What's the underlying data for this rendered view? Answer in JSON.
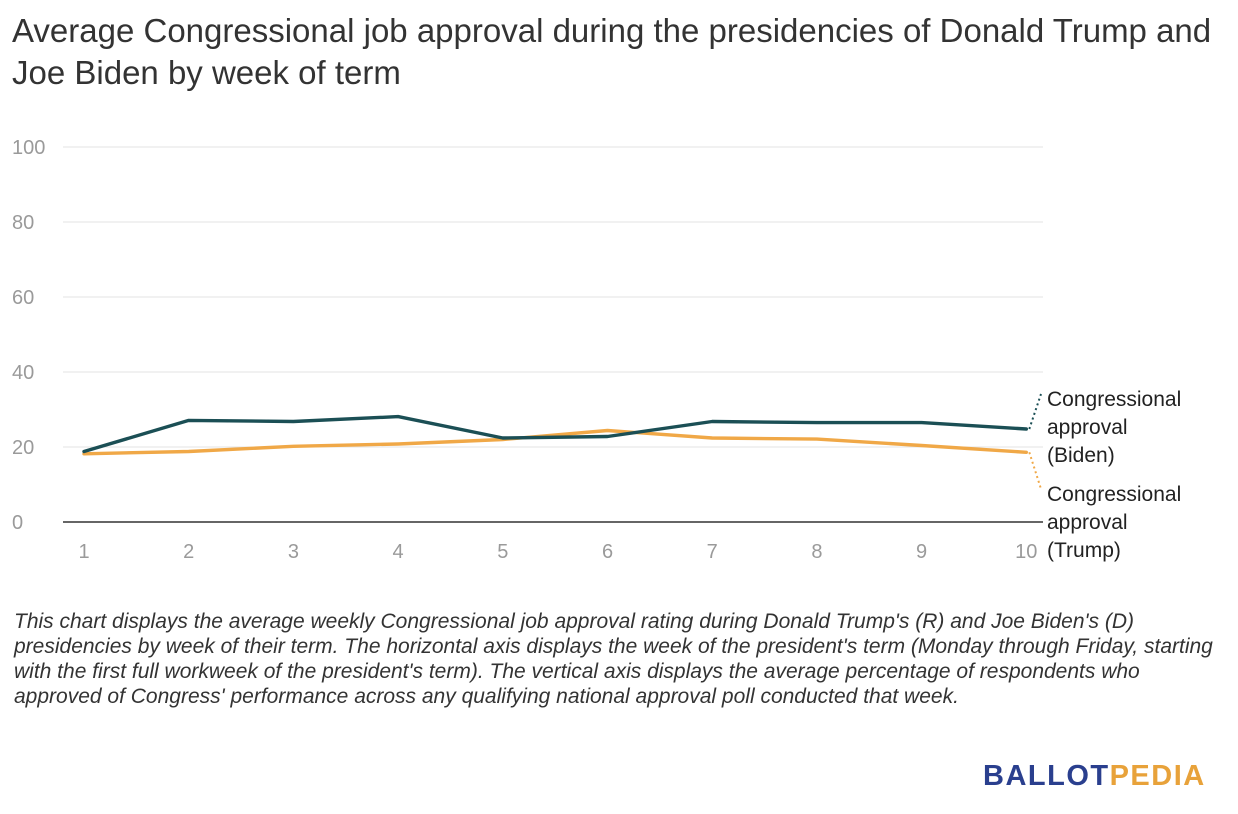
{
  "title": "Average Congressional job approval during the presidencies of Donald Trump and Joe Biden by week of term",
  "caption": "This chart displays the average weekly Congressional job approval rating during Donald Trump's (R) and Joe Biden's (D) presidencies by week of their term. The horizontal axis displays the week of the president's term (Monday through Friday, starting with the first full workweek of the president's term). The vertical axis displays the average percentage of respondents who approved of Congress' performance across any qualifying national approval poll conducted that week.",
  "logo": {
    "part1": "BALLOT",
    "part2": "PEDIA",
    "color1": "#2a3f8e",
    "color2": "#e8a23a"
  },
  "chart_data": {
    "type": "line",
    "title": "Average Congressional job approval during the presidencies of Donald Trump and Joe Biden by week of term",
    "xlabel": "",
    "ylabel": "",
    "x": [
      1,
      2,
      3,
      4,
      5,
      6,
      7,
      8,
      9,
      10
    ],
    "ylim": [
      0,
      100
    ],
    "yticks": [
      0,
      20,
      40,
      60,
      80,
      100
    ],
    "grid": true,
    "legend": "direct labels at right end of lines",
    "series": [
      {
        "name": "Congressional approval (Biden)",
        "label_lines": [
          "Congressional",
          "approval",
          "(Biden)"
        ],
        "color": "#1b4f55",
        "values": [
          18.8,
          27.1,
          26.8,
          28.1,
          22.4,
          22.8,
          26.8,
          26.5,
          26.5,
          24.8
        ]
      },
      {
        "name": "Congressional approval (Trump)",
        "label_lines": [
          "Congressional",
          "approval",
          "(Trump)"
        ],
        "color": "#f0a847",
        "values": [
          18.2,
          18.8,
          20.2,
          20.8,
          22.0,
          24.4,
          22.4,
          22.1,
          20.4,
          18.6
        ]
      }
    ]
  }
}
